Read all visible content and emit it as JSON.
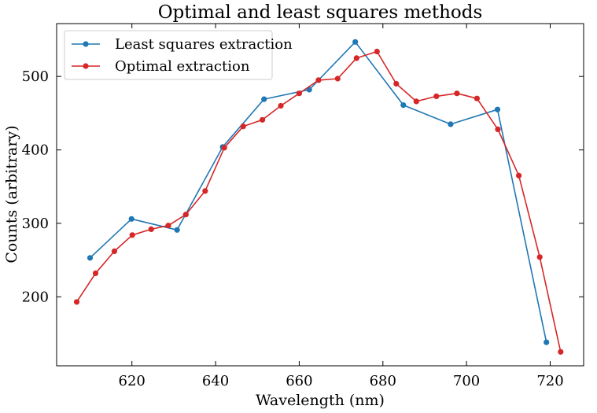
{
  "chart_data": {
    "type": "line",
    "title": "Optimal and least squares methods",
    "xlabel": "Wavelength (nm)",
    "ylabel": "Counts (arbitrary)",
    "xlim": [
      602,
      728
    ],
    "ylim": [
      106,
      572
    ],
    "xticks": [
      620,
      640,
      660,
      680,
      700,
      720
    ],
    "yticks": [
      200,
      300,
      400,
      500
    ],
    "grid": false,
    "legend_position": "upper-left",
    "series": [
      {
        "name": "Least squares extraction",
        "color": "#1f77b4",
        "x": [
          610.0,
          619.9,
          630.8,
          641.7,
          651.6,
          662.4,
          673.4,
          684.9,
          696.2,
          707.4,
          719.1
        ],
        "y": [
          253,
          306,
          291,
          404,
          469,
          482,
          547,
          461,
          435,
          455,
          138
        ]
      },
      {
        "name": "Optimal extraction",
        "color": "#d62728",
        "x": [
          606.8,
          611.3,
          615.8,
          620.1,
          624.6,
          628.7,
          632.9,
          637.5,
          642.1,
          646.6,
          651.2,
          655.6,
          660.0,
          664.6,
          669.2,
          673.7,
          678.6,
          683.2,
          688.0,
          692.8,
          697.7,
          702.5,
          707.5,
          712.5,
          717.5,
          722.5
        ],
        "y": [
          193,
          232,
          262,
          284,
          292,
          297,
          312,
          344,
          403,
          432,
          441,
          460,
          477,
          495,
          497,
          525,
          534,
          490,
          466,
          473,
          477,
          470,
          428,
          365,
          254,
          125
        ]
      }
    ]
  }
}
